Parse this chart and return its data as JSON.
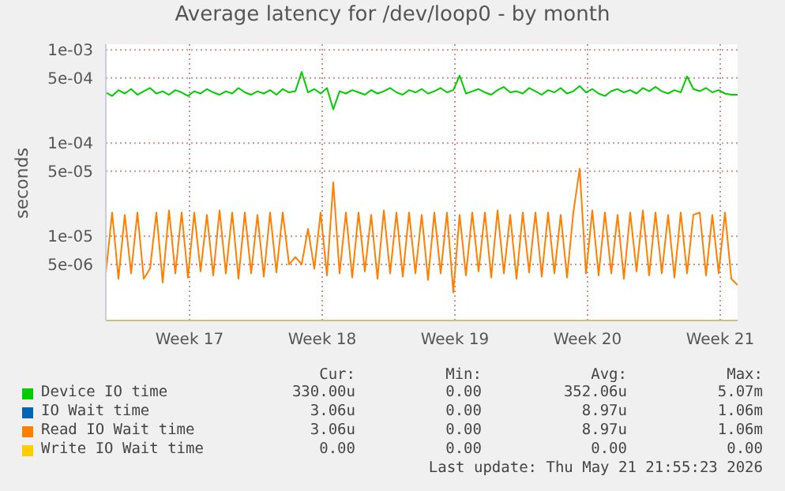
{
  "chart_data": {
    "type": "line",
    "title": "Average latency for /dev/loop0 - by month",
    "ylabel": "seconds",
    "log": true,
    "grid": true,
    "legend": "bottom",
    "ylim": [
      1.25e-06,
      0.00115
    ],
    "yticks": [
      {
        "value": 0.001,
        "label": "1e-03"
      },
      {
        "value": 0.0005,
        "label": "5e-04"
      },
      {
        "value": 0.0001,
        "label": "1e-04"
      },
      {
        "value": 5e-05,
        "label": "5e-05"
      },
      {
        "value": 1e-05,
        "label": "1e-05"
      },
      {
        "value": 5e-06,
        "label": "5e-06"
      }
    ],
    "xlim": [
      "2026-04-18T14:00",
      "2026-05-21T22:00"
    ],
    "xticks": [
      {
        "value": "2026-04-23",
        "label": "Week 17"
      },
      {
        "value": "2026-04-30",
        "label": "Week 18"
      },
      {
        "value": "2026-05-07",
        "label": "Week 19"
      },
      {
        "value": "2026-05-14",
        "label": "Week 20"
      },
      {
        "value": "2026-05-21",
        "label": "Week 21"
      }
    ],
    "x": [
      "2026-04-18T14:00",
      "2026-04-18T22:00",
      "2026-04-19T06:00",
      "2026-04-19T14:00",
      "2026-04-19T22:00",
      "2026-04-20T06:00",
      "2026-04-20T14:00",
      "2026-04-20T22:00",
      "2026-04-21T06:00",
      "2026-04-21T14:00",
      "2026-04-21T22:00",
      "2026-04-22T06:00",
      "2026-04-22T14:00",
      "2026-04-22T22:00",
      "2026-04-23T06:00",
      "2026-04-23T14:00",
      "2026-04-23T22:00",
      "2026-04-24T06:00",
      "2026-04-24T14:00",
      "2026-04-24T22:00",
      "2026-04-25T06:00",
      "2026-04-25T14:00",
      "2026-04-25T22:00",
      "2026-04-26T06:00",
      "2026-04-26T14:00",
      "2026-04-26T22:00",
      "2026-04-27T06:00",
      "2026-04-27T14:00",
      "2026-04-27T22:00",
      "2026-04-28T06:00",
      "2026-04-28T14:00",
      "2026-04-28T22:00",
      "2026-04-29T06:00",
      "2026-04-29T14:00",
      "2026-04-29T22:00",
      "2026-04-30T06:00",
      "2026-04-30T14:00",
      "2026-04-30T22:00",
      "2026-05-01T06:00",
      "2026-05-01T14:00",
      "2026-05-01T22:00",
      "2026-05-02T06:00",
      "2026-05-02T14:00",
      "2026-05-02T22:00",
      "2026-05-03T06:00",
      "2026-05-03T14:00",
      "2026-05-03T22:00",
      "2026-05-04T06:00",
      "2026-05-04T14:00",
      "2026-05-04T22:00",
      "2026-05-05T06:00",
      "2026-05-05T14:00",
      "2026-05-05T22:00",
      "2026-05-06T06:00",
      "2026-05-06T14:00",
      "2026-05-06T22:00",
      "2026-05-07T06:00",
      "2026-05-07T14:00",
      "2026-05-07T22:00",
      "2026-05-08T06:00",
      "2026-05-08T14:00",
      "2026-05-08T22:00",
      "2026-05-09T06:00",
      "2026-05-09T14:00",
      "2026-05-09T22:00",
      "2026-05-10T06:00",
      "2026-05-10T14:00",
      "2026-05-10T22:00",
      "2026-05-11T06:00",
      "2026-05-11T14:00",
      "2026-05-11T22:00",
      "2026-05-12T06:00",
      "2026-05-12T14:00",
      "2026-05-12T22:00",
      "2026-05-13T06:00",
      "2026-05-13T14:00",
      "2026-05-13T22:00",
      "2026-05-14T06:00",
      "2026-05-14T14:00",
      "2026-05-14T22:00",
      "2026-05-15T06:00",
      "2026-05-15T14:00",
      "2026-05-15T22:00",
      "2026-05-16T06:00",
      "2026-05-16T14:00",
      "2026-05-16T22:00",
      "2026-05-17T06:00",
      "2026-05-17T14:00",
      "2026-05-17T22:00",
      "2026-05-18T06:00",
      "2026-05-18T14:00",
      "2026-05-18T22:00",
      "2026-05-19T06:00",
      "2026-05-19T14:00",
      "2026-05-19T22:00",
      "2026-05-20T06:00",
      "2026-05-20T14:00",
      "2026-05-20T22:00",
      "2026-05-21T06:00",
      "2026-05-21T14:00",
      "2026-05-21T22:00"
    ],
    "series": [
      {
        "name": "Device IO time",
        "color": "#00cc00",
        "values": [
          0.00035,
          0.00032,
          0.00037,
          0.00034,
          0.00038,
          0.00033,
          0.00036,
          0.00039,
          0.00034,
          0.00036,
          0.00033,
          0.00037,
          0.00035,
          0.00032,
          0.00036,
          0.00034,
          0.00038,
          0.00035,
          0.00033,
          0.00036,
          0.00034,
          0.00039,
          0.00035,
          0.00033,
          0.00036,
          0.00034,
          0.00037,
          0.00033,
          0.00038,
          0.00035,
          0.00036,
          0.00058,
          0.00035,
          0.00038,
          0.00034,
          0.00039,
          0.00023,
          0.00036,
          0.00034,
          0.00037,
          0.00035,
          0.00033,
          0.00037,
          0.00034,
          0.00036,
          0.00039,
          0.00035,
          0.00033,
          0.00037,
          0.00035,
          0.00038,
          0.00034,
          0.00036,
          0.00039,
          0.00035,
          0.00037,
          0.00053,
          0.00034,
          0.00036,
          0.00038,
          0.00035,
          0.00033,
          0.00037,
          0.0004,
          0.00035,
          0.00036,
          0.00034,
          0.00039,
          0.00036,
          0.00033,
          0.00037,
          0.00035,
          0.00039,
          0.00034,
          0.00036,
          0.00041,
          0.00035,
          0.00038,
          0.00034,
          0.00032,
          0.00036,
          0.00038,
          0.00035,
          0.00037,
          0.00034,
          0.00039,
          0.00036,
          0.0004,
          0.00036,
          0.00034,
          0.00037,
          0.00035,
          0.00052,
          0.00038,
          0.00036,
          0.00039,
          0.00035,
          0.00037,
          0.00034,
          0.00033,
          0.00033
        ]
      },
      {
        "name": "IO Wait time",
        "color": "#0066b3",
        "values": [
          null,
          null,
          null,
          null,
          null,
          null,
          null,
          null,
          null,
          null,
          null,
          null,
          null,
          null,
          null,
          null,
          null,
          null,
          null,
          null,
          null,
          null,
          null,
          null,
          null,
          null,
          null,
          null,
          null,
          null,
          null,
          null,
          null,
          null,
          null,
          null,
          null,
          null,
          null,
          null,
          null,
          null,
          null,
          null,
          null,
          null,
          null,
          null,
          null,
          null,
          null,
          null,
          null,
          null,
          null,
          null,
          null,
          null,
          null,
          null,
          null,
          null,
          null,
          null,
          null,
          null,
          null,
          null,
          null,
          null,
          null,
          null,
          null,
          null,
          null,
          null,
          null,
          null,
          null,
          null,
          null,
          null,
          null,
          null,
          null,
          null,
          null,
          null,
          null,
          null,
          null,
          null,
          null,
          null,
          null,
          null,
          null,
          null,
          null,
          null,
          null
        ]
      },
      {
        "name": "Read IO Wait time",
        "color": "#ff8000",
        "values": [
          4e-06,
          1.8e-05,
          3.5e-06,
          1.7e-05,
          4e-06,
          1.8e-05,
          3.5e-06,
          4.5e-06,
          1.8e-05,
          3.2e-06,
          1.9e-05,
          4e-06,
          1.8e-05,
          3.6e-06,
          1.8e-05,
          4.2e-06,
          1.7e-05,
          3.8e-06,
          1.9e-05,
          4e-06,
          1.8e-05,
          3.5e-06,
          1.8e-05,
          4e-06,
          1.7e-05,
          3.7e-06,
          1.8e-05,
          4.1e-06,
          1.8e-05,
          5e-06,
          6e-06,
          5e-06,
          1.2e-05,
          4.5e-06,
          1.8e-05,
          3.8e-06,
          3.8e-05,
          4e-06,
          1.8e-05,
          3.6e-06,
          1.8e-05,
          4.2e-06,
          1.7e-05,
          3.5e-06,
          1.9e-05,
          4e-06,
          1.8e-05,
          3.7e-06,
          1.8e-05,
          4e-06,
          1.7e-05,
          3.4e-06,
          1.8e-05,
          4e-06,
          1.8e-05,
          2.5e-06,
          1.7e-05,
          3.8e-06,
          1.8e-05,
          4.2e-06,
          1.8e-05,
          3.6e-06,
          1.9e-05,
          4e-06,
          1.7e-05,
          3.5e-06,
          1.8e-05,
          4.1e-06,
          1.8e-05,
          3.7e-06,
          1.8e-05,
          4e-06,
          1.7e-05,
          3.6e-06,
          1.8e-05,
          5.3e-05,
          4e-06,
          1.9e-05,
          3.8e-06,
          1.8e-05,
          4e-06,
          1.7e-05,
          3.5e-06,
          1.8e-05,
          4.2e-06,
          1.9e-05,
          3.8e-06,
          1.8e-05,
          4e-06,
          1.7e-05,
          3.6e-06,
          1.8e-05,
          4e-06,
          1.7e-05,
          1.8e-05,
          3.8e-06,
          1.7e-05,
          4e-06,
          1.8e-05,
          3.5e-06,
          3e-06
        ]
      },
      {
        "name": "Write IO Wait time",
        "color": "#ffcc00",
        "values": [
          null,
          null,
          null,
          null,
          null,
          null,
          null,
          null,
          null,
          null,
          null,
          null,
          null,
          null,
          null,
          null,
          null,
          null,
          null,
          null,
          null,
          null,
          null,
          null,
          null,
          null,
          null,
          null,
          null,
          null,
          null,
          null,
          null,
          null,
          null,
          null,
          null,
          null,
          null,
          null,
          null,
          null,
          null,
          null,
          null,
          null,
          null,
          null,
          null,
          null,
          null,
          null,
          null,
          null,
          null,
          null,
          null,
          null,
          null,
          null,
          null,
          null,
          null,
          null,
          null,
          null,
          null,
          null,
          null,
          null,
          null,
          null,
          null,
          null,
          null,
          null,
          null,
          null,
          null,
          null,
          null,
          null,
          null,
          null,
          null,
          null,
          null,
          null,
          null,
          null,
          null,
          null,
          null,
          null,
          null,
          null,
          null,
          null,
          null,
          null,
          null
        ]
      }
    ],
    "annotations": [
      "Cur:",
      "Min:",
      "Avg:",
      "Max:",
      "330.00u",
      "0.00",
      "352.06u",
      "5.07m",
      "3.06u",
      "0.00",
      "8.97u",
      "1.06m",
      "3.06u",
      "0.00",
      "8.97u",
      "1.06m",
      "0.00",
      "0.00",
      "0.00",
      "0.00",
      "Last update: Thu May 21 21:55:23 2026"
    ]
  }
}
